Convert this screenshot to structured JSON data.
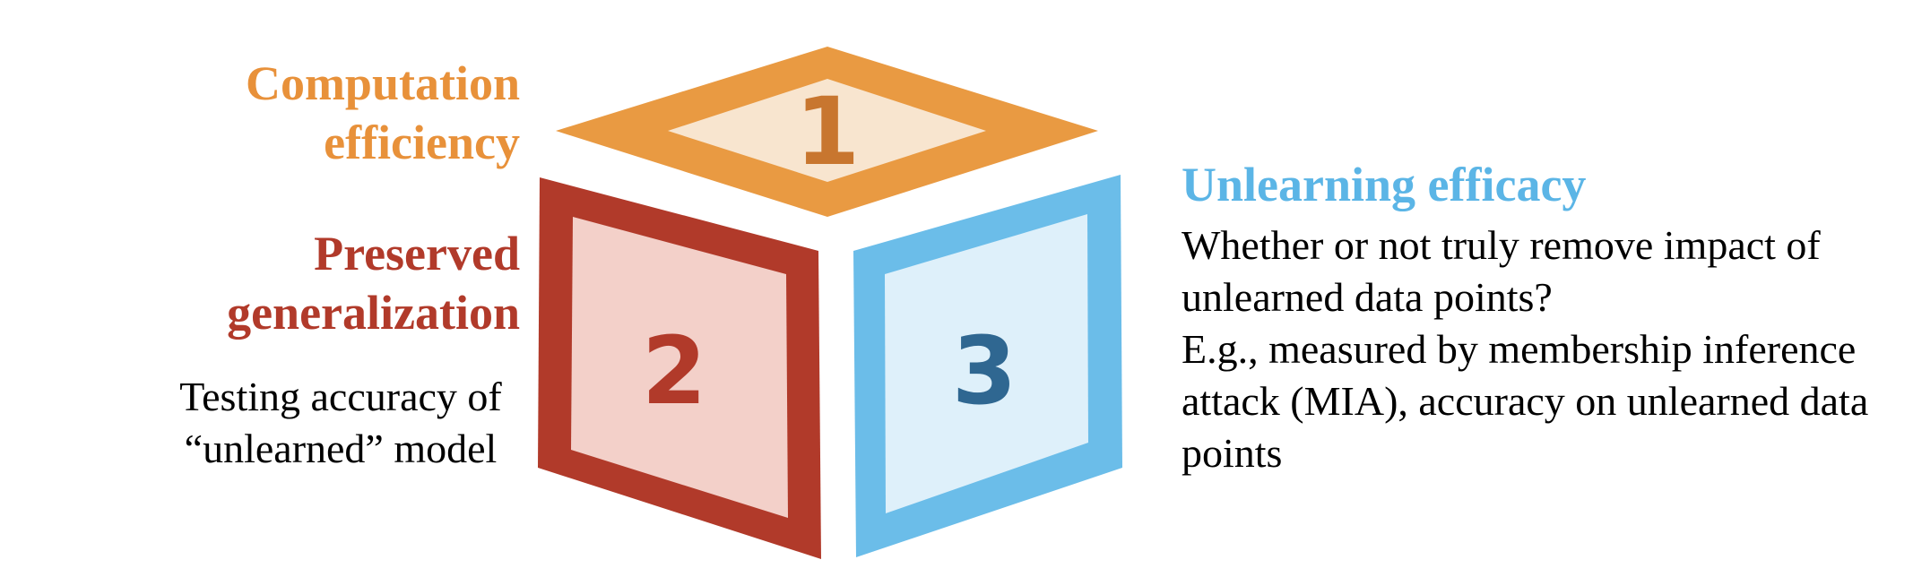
{
  "colors": {
    "face1_outer": "#e99a42",
    "face1_inner": "#f8e5cf",
    "face1_number": "#c8762f",
    "face2_outer": "#b13a2a",
    "face2_inner": "#f3d0c9",
    "face2_number": "#b13a2a",
    "face3_outer": "#6bbde9",
    "face3_inner": "#def0fa",
    "face3_number": "#2f6791",
    "heading1": "#e8913a",
    "heading2": "#b13a2a",
    "heading3": "#5bb5e6"
  },
  "cube": {
    "face1_number": "1",
    "face2_number": "2",
    "face3_number": "3"
  },
  "criteria": {
    "computation": {
      "title_lines": [
        "Computation",
        "efficiency"
      ]
    },
    "generalization": {
      "title_lines": [
        "Preserved",
        "generalization"
      ],
      "description_lines": [
        "Testing accuracy of",
        "“unlearned” model"
      ]
    },
    "efficacy": {
      "title": "Unlearning efficacy",
      "description_lines": [
        "Whether or not truly remove impact of",
        "unlearned data points?",
        "E.g., measured by membership inference",
        "attack (MIA), accuracy on unlearned data",
        "points"
      ]
    }
  }
}
